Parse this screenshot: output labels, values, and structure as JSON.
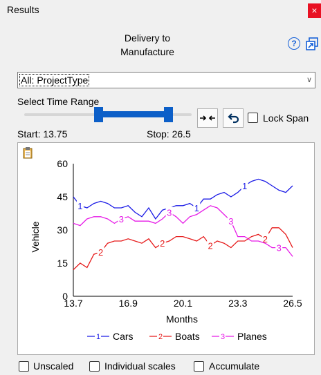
{
  "window": {
    "title": "Results",
    "close_glyph": "×"
  },
  "header": {
    "title_line1": "Delivery to",
    "title_line2": "Manufacture",
    "help_glyph": "?"
  },
  "dropdown": {
    "value": "All: ProjectType"
  },
  "time_range": {
    "label": "Select Time Range",
    "start_text": "Start: 13.75",
    "stop_text": "Stop: 26.5",
    "lock_span_label": "Lock Span",
    "lock_span_checked": false,
    "selected_fraction_start": 0.44,
    "selected_fraction_end": 0.86
  },
  "options": {
    "unscaled": "Unscaled",
    "individual_scales": "Individual scales",
    "accumulate": "Accumulate"
  },
  "chart_data": {
    "type": "line",
    "xlabel": "Months",
    "ylabel": "Vehicle",
    "xlim": [
      13.7,
      26.5
    ],
    "ylim": [
      0,
      60
    ],
    "x_ticks": [
      "13.7",
      "16.9",
      "20.1",
      "23.3",
      "26.5"
    ],
    "y_ticks": [
      "60",
      "45",
      "30",
      "15",
      "0"
    ],
    "legend_position": "bottom",
    "series": [
      {
        "name": "Cars",
        "marker": "1",
        "color": "#1a1ae6",
        "x": [
          13.7,
          14.1,
          14.5,
          14.9,
          15.3,
          15.7,
          16.1,
          16.5,
          16.9,
          17.3,
          17.7,
          18.1,
          18.5,
          18.9,
          19.3,
          19.7,
          20.1,
          20.5,
          20.9,
          21.3,
          21.7,
          22.1,
          22.5,
          22.9,
          23.3,
          23.7,
          24.1,
          24.5,
          24.9,
          25.3,
          25.7,
          26.1,
          26.5
        ],
        "y": [
          45,
          41,
          40,
          42,
          43,
          42,
          40,
          40,
          41,
          38,
          36,
          40,
          35,
          39,
          40,
          41,
          41,
          42,
          40,
          44,
          44,
          46,
          47,
          45,
          47,
          50,
          52,
          53,
          52,
          50,
          48,
          47,
          50
        ]
      },
      {
        "name": "Boats",
        "marker": "2",
        "color": "#e61a1a",
        "x": [
          13.7,
          14.1,
          14.5,
          14.9,
          15.3,
          15.7,
          16.1,
          16.5,
          16.9,
          17.3,
          17.7,
          18.1,
          18.5,
          18.9,
          19.3,
          19.7,
          20.1,
          20.5,
          20.9,
          21.3,
          21.7,
          22.1,
          22.5,
          22.9,
          23.3,
          23.7,
          24.1,
          24.5,
          24.9,
          25.3,
          25.7,
          26.1,
          26.5
        ],
        "y": [
          12,
          15,
          13,
          19,
          20,
          24,
          25,
          25,
          26,
          25,
          24,
          26,
          22,
          24,
          25,
          27,
          27,
          26,
          25,
          27,
          23,
          25,
          24,
          22,
          25,
          25,
          27,
          28,
          26,
          31,
          31,
          28,
          22
        ]
      },
      {
        "name": "Planes",
        "marker": "3",
        "color": "#e61ae6",
        "x": [
          13.7,
          14.1,
          14.5,
          14.9,
          15.3,
          15.7,
          16.1,
          16.5,
          16.9,
          17.3,
          17.7,
          18.1,
          18.5,
          18.9,
          19.3,
          19.7,
          20.1,
          20.5,
          20.9,
          21.3,
          21.7,
          22.1,
          22.5,
          22.9,
          23.3,
          23.7,
          24.1,
          24.5,
          24.9,
          25.3,
          25.7,
          26.1,
          26.5
        ],
        "y": [
          33,
          32,
          35,
          36,
          36,
          35,
          33,
          35,
          36,
          34,
          34,
          34,
          33,
          35,
          38,
          36,
          33,
          36,
          37,
          39,
          41,
          40,
          37,
          34,
          27,
          27,
          25,
          25,
          24,
          22,
          22,
          22,
          18
        ]
      }
    ]
  }
}
